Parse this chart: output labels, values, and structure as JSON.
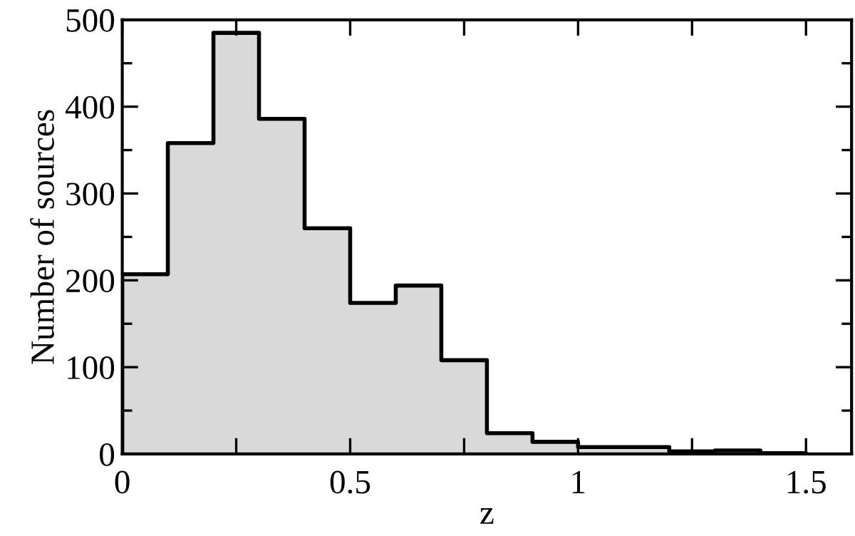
{
  "chart_data": {
    "type": "histogram",
    "xlabel": "z",
    "ylabel": "Number of sources",
    "bins": [
      0,
      0.1,
      0.2,
      0.3,
      0.4,
      0.5,
      0.6,
      0.7,
      0.8,
      0.9,
      1.0,
      1.1,
      1.2,
      1.3,
      1.4,
      1.5
    ],
    "values": [
      207,
      358,
      485,
      386,
      260,
      174,
      194,
      108,
      24,
      14,
      8,
      8,
      3,
      4,
      1
    ],
    "color": "#d9d9d9",
    "xlim": [
      0,
      1.6
    ],
    "ylim": [
      0,
      500
    ],
    "xticks": [
      0,
      {
        "value": 0.25,
        "label": null
      },
      0.5,
      {
        "value": 0.75,
        "label": null
      },
      1,
      {
        "value": 1.25,
        "label": null
      },
      1.5
    ],
    "yticks": [
      0,
      {
        "value": 50,
        "label": null
      },
      100,
      {
        "value": 150,
        "label": null
      },
      200,
      {
        "value": 250,
        "label": null
      },
      300,
      {
        "value": 350,
        "label": null
      },
      400,
      {
        "value": 450,
        "label": null
      },
      500
    ],
    "grid": false
  }
}
